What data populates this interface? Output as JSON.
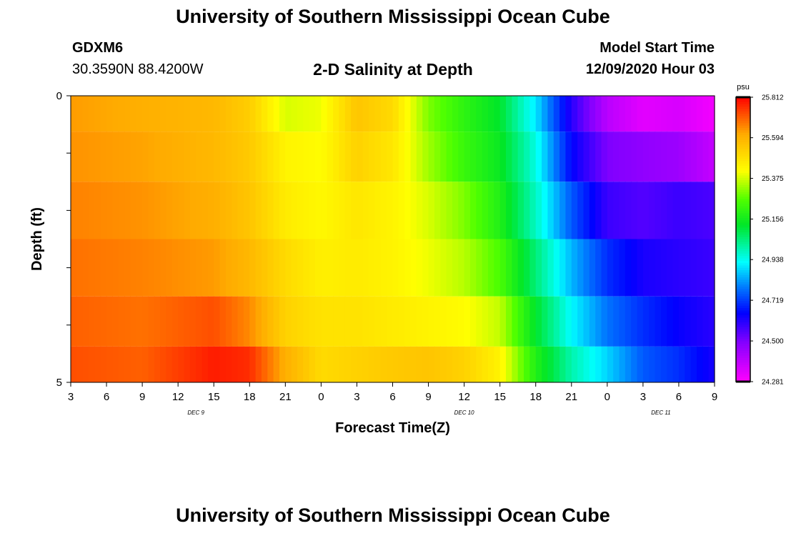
{
  "header": {
    "title": "University of Southern Mississippi Ocean Cube",
    "footer_title": "University of Southern Mississippi Ocean Cube",
    "station_id": "GDXM6",
    "station_coords": "30.3590N 88.4200W",
    "plot_title": "2-D Salinity at Depth",
    "model_start_label": "Model Start Time",
    "model_start_value": "12/09/2020 Hour 03"
  },
  "chart_data": {
    "type": "heatmap",
    "title": "2-D Salinity at Depth",
    "xlabel": "Forecast Time(Z)",
    "ylabel": "Depth (ft)",
    "x_hours": [
      0,
      3,
      6,
      9,
      12,
      15,
      18,
      21,
      24,
      27,
      30,
      33,
      36,
      39,
      42,
      45,
      48,
      51,
      54
    ],
    "x_tick_labels": [
      "3",
      "6",
      "9",
      "12",
      "15",
      "18",
      "21",
      "0",
      "3",
      "6",
      "9",
      "12",
      "15",
      "18",
      "21",
      "0",
      "3",
      "6",
      "9"
    ],
    "date_labels": [
      {
        "label": "DEC 9",
        "hour": 10.5
      },
      {
        "label": "DEC 10",
        "hour": 33
      },
      {
        "label": "DEC 11",
        "hour": 49.5
      }
    ],
    "y_tick_labels": [
      {
        "depth": 0,
        "label": "0"
      },
      {
        "depth": 1,
        "label": ""
      },
      {
        "depth": 2,
        "label": ""
      },
      {
        "depth": 3,
        "label": ""
      },
      {
        "depth": 4,
        "label": ""
      },
      {
        "depth": 5,
        "label": "5"
      }
    ],
    "ylim": [
      0,
      5
    ],
    "xlim": [
      0,
      54
    ],
    "colorbar": {
      "unit": "psu",
      "min": 24.281,
      "max": 25.812,
      "tick_labels": [
        "25.812",
        "25.594",
        "25.375",
        "25.156",
        "24.938",
        "24.719",
        "24.500",
        "24.281"
      ]
    },
    "layer_depths": [
      0.25,
      1.0,
      2.0,
      3.0,
      4.0,
      4.75
    ],
    "key_hours": [
      0,
      6,
      12,
      15,
      18,
      21,
      24,
      27,
      30,
      33,
      36,
      39,
      42,
      45,
      48,
      51,
      54
    ],
    "layers": [
      {
        "depth": 0.25,
        "values": [
          25.63,
          25.6,
          25.58,
          25.53,
          25.38,
          25.4,
          25.55,
          25.5,
          25.3,
          25.2,
          25.12,
          24.9,
          24.6,
          24.4,
          24.33,
          24.35,
          24.3
        ]
      },
      {
        "depth": 1.0,
        "values": [
          25.64,
          25.62,
          25.58,
          25.54,
          25.44,
          25.42,
          25.52,
          25.47,
          25.33,
          25.22,
          25.14,
          24.95,
          24.65,
          24.5,
          24.47,
          24.45,
          24.38
        ]
      },
      {
        "depth": 2.0,
        "values": [
          25.66,
          25.64,
          25.6,
          25.55,
          25.46,
          25.43,
          25.47,
          25.44,
          25.38,
          25.3,
          25.18,
          24.98,
          24.75,
          24.58,
          24.55,
          24.58,
          24.56
        ]
      },
      {
        "depth": 3.0,
        "values": [
          25.68,
          25.66,
          25.63,
          25.58,
          25.5,
          25.45,
          25.46,
          25.44,
          25.4,
          25.35,
          25.25,
          25.05,
          24.85,
          24.7,
          24.62,
          24.6,
          24.58
        ]
      },
      {
        "depth": 4.0,
        "values": [
          25.7,
          25.68,
          25.72,
          25.65,
          25.52,
          25.48,
          25.48,
          25.46,
          25.44,
          25.42,
          25.36,
          25.12,
          24.92,
          24.78,
          24.7,
          24.64,
          24.6
        ]
      },
      {
        "depth": 4.75,
        "values": [
          25.72,
          25.7,
          25.78,
          25.76,
          25.6,
          25.5,
          25.52,
          25.54,
          25.55,
          25.52,
          25.44,
          25.18,
          25.0,
          24.88,
          24.75,
          24.7,
          24.62
        ]
      }
    ]
  }
}
